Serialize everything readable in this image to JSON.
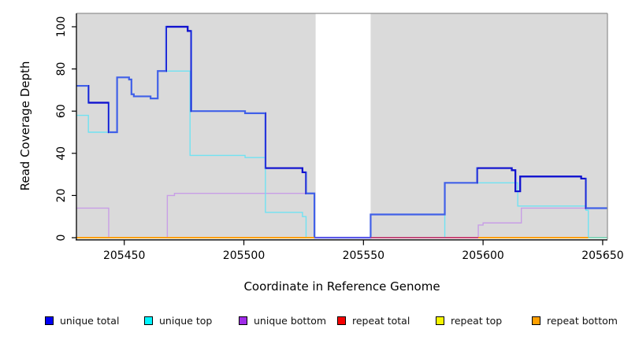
{
  "chart_data": {
    "type": "line",
    "style": "step",
    "xlabel": "Coordinate in Reference Genome",
    "ylabel": "Read Coverage Depth",
    "xlim": [
      205430,
      205652
    ],
    "ylim": [
      0,
      106
    ],
    "x_ticks": [
      205450,
      205500,
      205550,
      205600,
      205650
    ],
    "y_ticks": [
      0,
      20,
      40,
      60,
      80,
      100
    ],
    "plot_bg": "#dadada",
    "frame_color": "#909090",
    "axis_color": "#000000",
    "gap_region": {
      "from": 205530,
      "to": 205553
    },
    "series": [
      {
        "name": "unique total",
        "color": "#4060e8",
        "dark_color": "#1212ce",
        "width": 2.2,
        "points": [
          [
            205430,
            72
          ],
          [
            205435,
            64
          ],
          [
            205443.5,
            50
          ],
          [
            205447,
            76
          ],
          [
            205452,
            75
          ],
          [
            205453,
            68
          ],
          [
            205454,
            67
          ],
          [
            205461,
            66
          ],
          [
            205464,
            79
          ],
          [
            205467.5,
            100
          ],
          [
            205476.5,
            98
          ],
          [
            205478,
            60
          ],
          [
            205500.5,
            59
          ],
          [
            205509,
            33
          ],
          [
            205524.5,
            31
          ],
          [
            205526,
            21
          ],
          [
            205529.5,
            0
          ],
          [
            205553,
            11
          ],
          [
            205584,
            26
          ],
          [
            205597.5,
            33
          ],
          [
            205612,
            32
          ],
          [
            205613.5,
            22
          ],
          [
            205615.5,
            29
          ],
          [
            205641,
            28
          ],
          [
            205643,
            14
          ]
        ],
        "end": 205652,
        "dark_ranges": [
          [
            205435,
            205443.5
          ],
          [
            205467.5,
            205478
          ],
          [
            205509,
            205526
          ],
          [
            205597.5,
            205643
          ]
        ]
      },
      {
        "name": "unique top",
        "color": "#70e2f2",
        "width": 1.4,
        "points": [
          [
            205430,
            58
          ],
          [
            205435,
            50
          ],
          [
            205447,
            76
          ],
          [
            205452,
            75
          ],
          [
            205453,
            68
          ],
          [
            205454,
            67
          ],
          [
            205461,
            66
          ],
          [
            205464,
            79
          ],
          [
            205477.5,
            39
          ],
          [
            205500.5,
            38
          ],
          [
            205509,
            12
          ],
          [
            205524.5,
            10
          ],
          [
            205526,
            0
          ],
          [
            205584,
            26
          ],
          [
            205614.5,
            15
          ],
          [
            205643,
            13
          ],
          [
            205644,
            0
          ]
        ],
        "end": 205652
      },
      {
        "name": "unique bottom",
        "color": "#c89ee6",
        "width": 1.4,
        "points": [
          [
            205430,
            14
          ],
          [
            205443.5,
            0
          ],
          [
            205468,
            20
          ],
          [
            205471,
            21
          ],
          [
            205529.5,
            0
          ],
          [
            205598,
            6
          ],
          [
            205600,
            7
          ],
          [
            205616,
            14
          ]
        ],
        "end": 205652
      },
      {
        "name": "repeat total",
        "color": "#c53a72",
        "width": 1.4,
        "points": [
          [
            205430,
            0
          ]
        ],
        "end": 205652
      },
      {
        "name": "repeat top",
        "color": "#f2e300",
        "width": 1.4,
        "points": [
          [
            205430,
            0
          ]
        ],
        "end": 205652
      },
      {
        "name": "repeat bottom",
        "color": "#ff9e00",
        "width": 1.8,
        "points": [
          [
            205430,
            0
          ]
        ],
        "end": 205652
      }
    ],
    "baseline_segments": [
      {
        "from": 205430,
        "to": 205529.5,
        "color": "#ff9e00"
      },
      {
        "from": 205529.5,
        "to": 205553,
        "color": "#5d55e8"
      },
      {
        "from": 205553,
        "to": 205598,
        "color": "#c53a72"
      },
      {
        "from": 205598,
        "to": 205644,
        "color": "#ff9e00"
      },
      {
        "from": 205644,
        "to": 205652,
        "color": "#80d8c0"
      }
    ],
    "legend_position": "bottom"
  },
  "legend": {
    "items": [
      {
        "label": "unique total",
        "color": "#0000f5"
      },
      {
        "label": "unique top",
        "color": "#00f5ff"
      },
      {
        "label": "unique bottom",
        "color": "#a02ce8"
      },
      {
        "label": "repeat total",
        "color": "#f50000"
      },
      {
        "label": "repeat top",
        "color": "#f5f500"
      },
      {
        "label": "repeat bottom",
        "color": "#ffa000"
      }
    ]
  }
}
